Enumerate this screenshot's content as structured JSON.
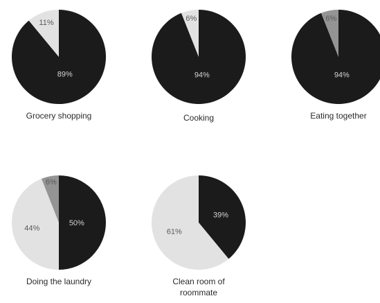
{
  "colors": {
    "dark": "#1b1b1b",
    "light": "#e2e2e2",
    "mid": "#949494",
    "label_dark_bg": "#d4d4d4",
    "label_light_bg": "#5a5a5a",
    "caption": "#2a2a2a"
  },
  "chart_data": [
    {
      "type": "pie",
      "title": "Grocery shopping",
      "slices": [
        {
          "value": 89,
          "label": "89%",
          "color": "dark"
        },
        {
          "value": 11,
          "label": "11%",
          "color": "light"
        }
      ]
    },
    {
      "type": "pie",
      "title": "Cooking",
      "slices": [
        {
          "value": 94,
          "label": "94%",
          "color": "dark"
        },
        {
          "value": 6,
          "label": "6%",
          "color": "light"
        }
      ]
    },
    {
      "type": "pie",
      "title": "Eating together",
      "slices": [
        {
          "value": 94,
          "label": "94%",
          "color": "dark"
        },
        {
          "value": 6,
          "label": "6%",
          "color": "mid"
        }
      ]
    },
    {
      "type": "pie",
      "title": "Doing the laundry",
      "slices": [
        {
          "value": 50,
          "label": "50%",
          "color": "dark"
        },
        {
          "value": 44,
          "label": "44%",
          "color": "light"
        },
        {
          "value": 6,
          "label": "6%",
          "color": "mid"
        }
      ]
    },
    {
      "type": "pie",
      "title": "Clean room of roommate",
      "slices": [
        {
          "value": 39,
          "label": "39%",
          "color": "dark"
        },
        {
          "value": 61,
          "label": "61%",
          "color": "light"
        }
      ]
    }
  ]
}
